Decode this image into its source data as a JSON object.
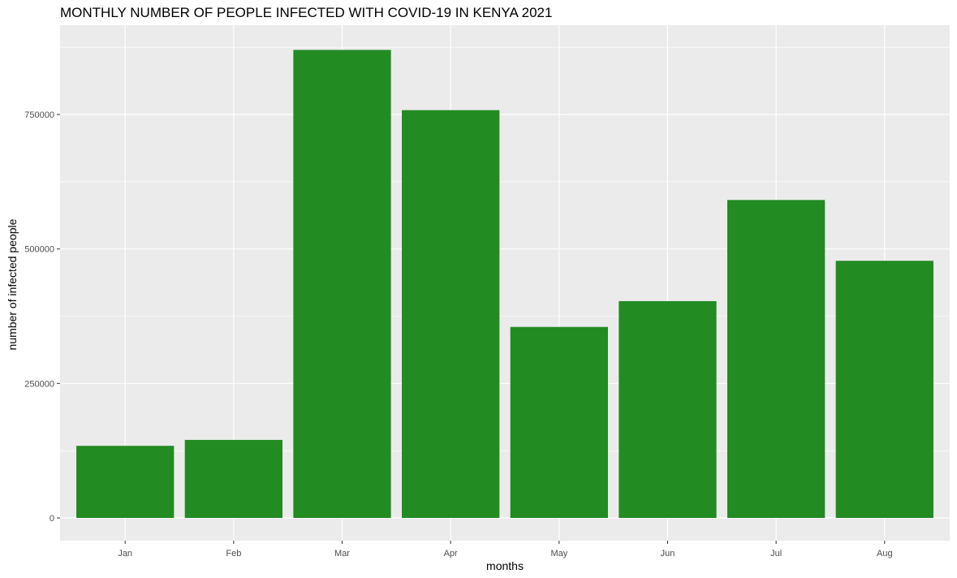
{
  "chart_data": {
    "type": "bar",
    "title": "MONTHLY NUMBER OF PEOPLE INFECTED WITH COVID-19 IN KENYA 2021",
    "xlabel": "months",
    "ylabel": "number of infected people",
    "categories": [
      "Jan",
      "Feb",
      "Mar",
      "Apr",
      "May",
      "Jun",
      "Jul",
      "Aug"
    ],
    "values": [
      134000,
      145000,
      870000,
      758000,
      355000,
      403000,
      591000,
      478000
    ],
    "ylim": [
      0,
      910000
    ],
    "yticks": [
      0,
      250000,
      500000,
      750000
    ],
    "ytick_labels": [
      "0",
      "250000",
      "500000",
      "750000"
    ],
    "grid": true,
    "colors": {
      "bar": "#228b22",
      "panel": "#ebebeb",
      "grid": "#ffffff",
      "background": "#ffffff"
    }
  }
}
